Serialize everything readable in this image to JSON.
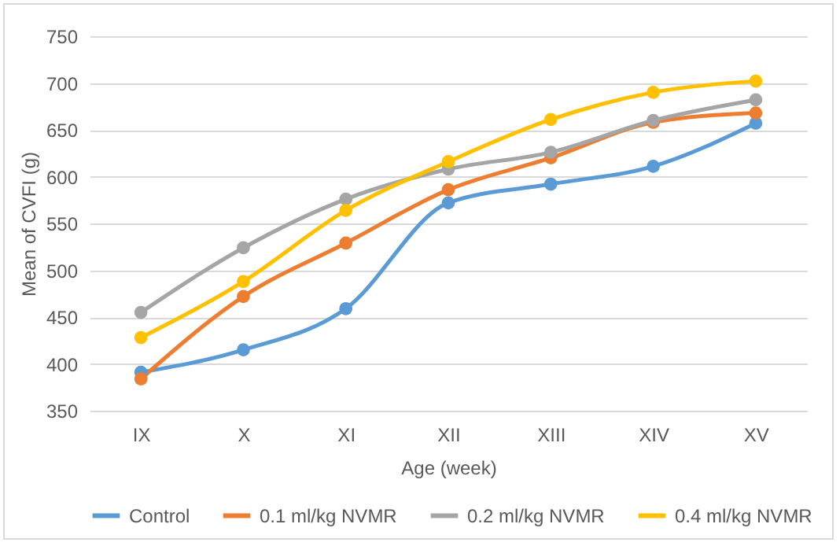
{
  "chart_data": {
    "type": "line",
    "xlabel": "Age (week)",
    "ylabel": "Mean of CVFI (g)",
    "categories": [
      "IX",
      "X",
      "XI",
      "XII",
      "XIII",
      "XIV",
      "XV"
    ],
    "series": [
      {
        "name": "Control",
        "color": "#5b9bd5",
        "values": [
          391,
          415,
          459,
          572,
          592,
          611,
          657
        ]
      },
      {
        "name": "0.1 ml/kg NVMR",
        "color": "#ed7d31",
        "values": [
          384,
          472,
          529,
          586,
          620,
          658,
          668
        ]
      },
      {
        "name": "0.2 ml/kg NVMR",
        "color": "#a5a5a5",
        "values": [
          455,
          524,
          576,
          608,
          626,
          660,
          682
        ]
      },
      {
        "name": "0.4 ml/kg NVMR",
        "color": "#ffc000",
        "values": [
          428,
          488,
          564,
          616,
          661,
          690,
          702
        ]
      }
    ],
    "ylim": [
      350,
      750
    ],
    "yticks": [
      350,
      400,
      450,
      500,
      550,
      600,
      650,
      700,
      750
    ],
    "grid": "y",
    "legend": "bottom",
    "marker": "circle",
    "line_style": "solid"
  }
}
